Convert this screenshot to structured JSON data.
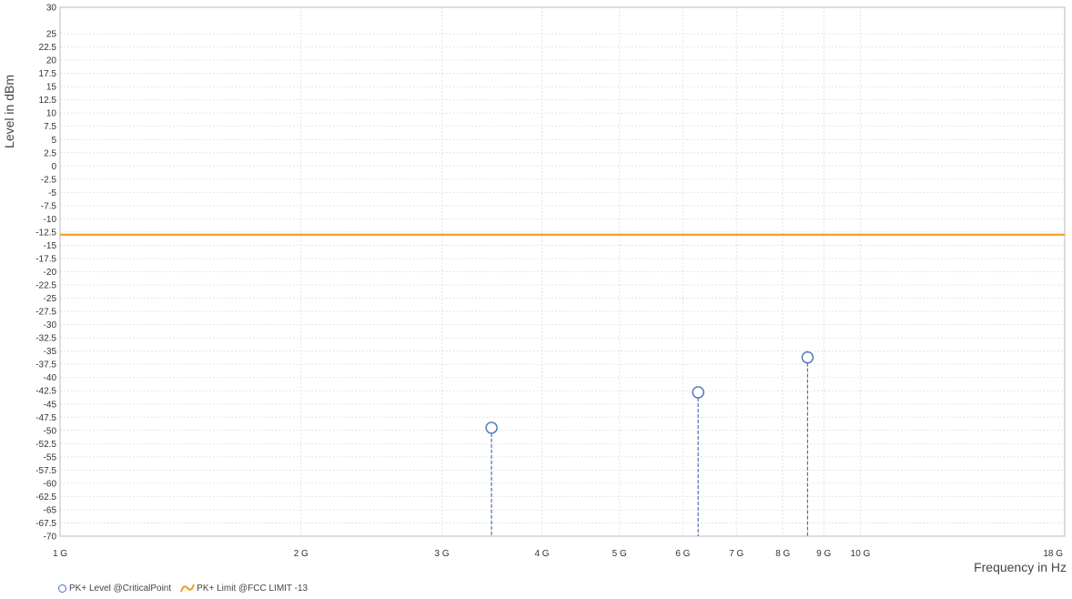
{
  "chart_data": {
    "type": "scatter",
    "xlabel": "Frequency in Hz",
    "ylabel": "Level in dBm",
    "x_scale": "log",
    "xlim": [
      1000000000,
      18000000000
    ],
    "ylim": [
      -70,
      30
    ],
    "grid": true,
    "legend_position": "bottom-left",
    "y_ticks": [
      "30",
      "25",
      "22.5",
      "20",
      "17.5",
      "15",
      "12.5",
      "10",
      "7.5",
      "5",
      "2.5",
      "0",
      "-2.5",
      "-5",
      "-7.5",
      "-10",
      "-12.5",
      "-15",
      "-17.5",
      "-20",
      "-22.5",
      "-25",
      "-27.5",
      "-30",
      "-32.5",
      "-35",
      "-37.5",
      "-40",
      "-42.5",
      "-45",
      "-47.5",
      "-50",
      "-52.5",
      "-55",
      "-57.5",
      "-60",
      "-62.5",
      "-65",
      "-67.5",
      "-70"
    ],
    "x_ticks": [
      {
        "value": 1000000000,
        "label": "1 G"
      },
      {
        "value": 2000000000,
        "label": "2 G"
      },
      {
        "value": 3000000000,
        "label": "3 G"
      },
      {
        "value": 4000000000,
        "label": "4 G"
      },
      {
        "value": 5000000000,
        "label": "5 G"
      },
      {
        "value": 6000000000,
        "label": "6 G"
      },
      {
        "value": 7000000000,
        "label": "7 G"
      },
      {
        "value": 8000000000,
        "label": "8 G"
      },
      {
        "value": 9000000000,
        "label": "9 G"
      },
      {
        "value": 10000000000,
        "label": "10 G"
      },
      {
        "value": 18000000000,
        "label": "18 G"
      }
    ],
    "series": [
      {
        "name": "PK+ Level @CriticalPoint",
        "color": "#4a73b5",
        "marker": "circle",
        "stem": true,
        "points": [
          {
            "x": 3460000000,
            "y": -49.5
          },
          {
            "x": 6270000000,
            "y": -42.8
          },
          {
            "x": 8590000000,
            "y": -36.2
          }
        ]
      },
      {
        "name": "PK+ Limit @FCC LIMIT -13",
        "color": "#f39c1f",
        "type": "line",
        "points": [
          {
            "x": 1000000000,
            "y": -13
          },
          {
            "x": 18000000000,
            "y": -13
          }
        ]
      }
    ]
  }
}
